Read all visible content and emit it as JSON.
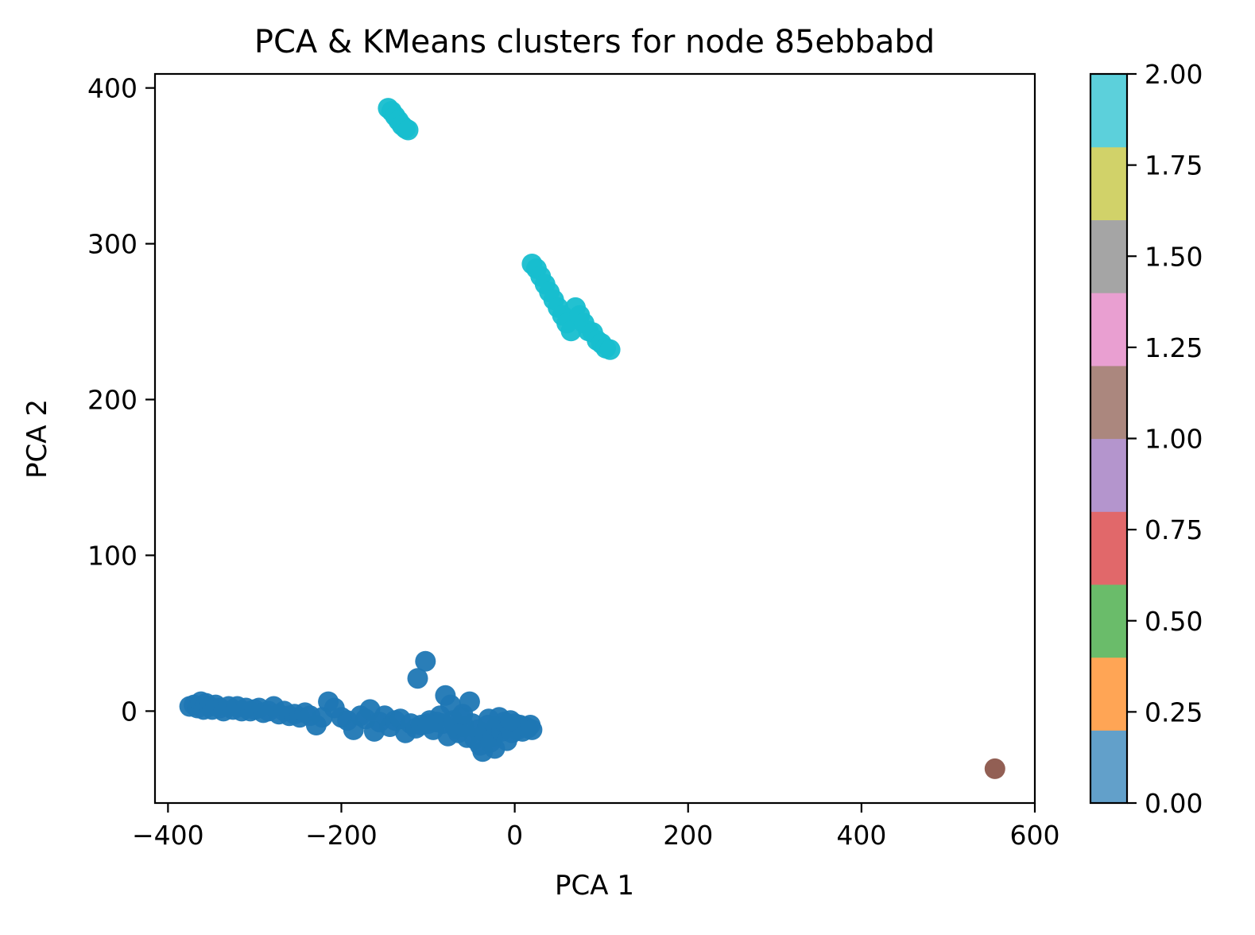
{
  "chart_data": {
    "type": "scatter",
    "title": "PCA & KMeans clusters for node 85ebbabd",
    "xlabel": "PCA 1",
    "ylabel": "PCA 2",
    "xlim": [
      -415,
      600
    ],
    "ylim": [
      -59,
      409
    ],
    "xticks": [
      -400,
      -200,
      0,
      200,
      400,
      600
    ],
    "xtick_labels": [
      "−400",
      "−200",
      "0",
      "200",
      "400",
      "600"
    ],
    "yticks": [
      0,
      100,
      200,
      300,
      400
    ],
    "ytick_labels": [
      "0",
      "100",
      "200",
      "300",
      "400"
    ],
    "grid": false,
    "colorbar": {
      "range": [
        0,
        2
      ],
      "ticks": [
        0,
        0.25,
        0.5,
        0.75,
        1.0,
        1.25,
        1.5,
        1.75,
        2.0
      ],
      "tick_labels": [
        "0.00",
        "0.25",
        "0.50",
        "0.75",
        "1.00",
        "1.25",
        "1.50",
        "1.75",
        "2.00"
      ],
      "colors": [
        "#62a0ca",
        "#ffa555",
        "#6abc6a",
        "#e1686a",
        "#b495cd",
        "#ab877e",
        "#e99fd1",
        "#a5a5a5",
        "#d1d269",
        "#5cd0db"
      ]
    },
    "series": [
      {
        "cluster": 0,
        "color": "#1f77b4",
        "points": [
          [
            -375,
            3
          ],
          [
            -370,
            4
          ],
          [
            -366,
            2
          ],
          [
            -362,
            6
          ],
          [
            -359,
            1
          ],
          [
            -356,
            5
          ],
          [
            -352,
            3
          ],
          [
            -349,
            1
          ],
          [
            -345,
            4
          ],
          [
            -340,
            2
          ],
          [
            -336,
            0
          ],
          [
            -330,
            3
          ],
          [
            -325,
            1
          ],
          [
            -320,
            3
          ],
          [
            -315,
            0
          ],
          [
            -310,
            2
          ],
          [
            -305,
            0
          ],
          [
            -300,
            1
          ],
          [
            -295,
            2
          ],
          [
            -290,
            -1
          ],
          [
            -284,
            0
          ],
          [
            -278,
            3
          ],
          [
            -272,
            -2
          ],
          [
            -266,
            0
          ],
          [
            -260,
            -3
          ],
          [
            -254,
            -2
          ],
          [
            -248,
            -4
          ],
          [
            -242,
            -1
          ],
          [
            -236,
            -3
          ],
          [
            -229,
            -9
          ],
          [
            -222,
            -4
          ],
          [
            -215,
            6
          ],
          [
            -208,
            2
          ],
          [
            -200,
            -4
          ],
          [
            -193,
            -6
          ],
          [
            -186,
            -12
          ],
          [
            -178,
            -3
          ],
          [
            -172,
            -5
          ],
          [
            -167,
            1
          ],
          [
            -162,
            -13
          ],
          [
            -156,
            -7
          ],
          [
            -150,
            -3
          ],
          [
            -144,
            -10
          ],
          [
            -138,
            -6
          ],
          [
            -132,
            -5
          ],
          [
            -126,
            -14
          ],
          [
            -120,
            -8
          ],
          [
            -114,
            -11
          ],
          [
            -112,
            21
          ],
          [
            -108,
            -9
          ],
          [
            -103,
            32
          ],
          [
            -98,
            -6
          ],
          [
            -94,
            -12
          ],
          [
            -90,
            -7
          ],
          [
            -86,
            -3
          ],
          [
            -83,
            -8
          ],
          [
            -80,
            10
          ],
          [
            -77,
            -16
          ],
          [
            -74,
            4
          ],
          [
            -71,
            -6
          ],
          [
            -68,
            -11
          ],
          [
            -65,
            -14
          ],
          [
            -62,
            -4
          ],
          [
            -58,
            -10
          ],
          [
            -55,
            -17
          ],
          [
            -52,
            6
          ],
          [
            -49,
            -8
          ],
          [
            -46,
            -18
          ],
          [
            -43,
            -12
          ],
          [
            -40,
            -22
          ],
          [
            -37,
            -26
          ],
          [
            -34,
            -14
          ],
          [
            -31,
            -9
          ],
          [
            -28,
            -20
          ],
          [
            -25,
            -16
          ],
          [
            -23,
            -24
          ],
          [
            -21,
            -10
          ],
          [
            -18,
            -4
          ],
          [
            -15,
            -13
          ],
          [
            -12,
            -7
          ],
          [
            -9,
            -19
          ],
          [
            -6,
            -10
          ],
          [
            -3,
            -14
          ],
          [
            0,
            -8
          ],
          [
            3,
            -12
          ],
          [
            6,
            -9
          ],
          [
            9,
            -13
          ],
          [
            12,
            -10
          ],
          [
            15,
            -11
          ],
          [
            18,
            -9
          ],
          [
            20,
            -12
          ],
          [
            -100,
            -8
          ],
          [
            -60,
            -2
          ],
          [
            -30,
            -5
          ],
          [
            -5,
            -6
          ]
        ]
      },
      {
        "cluster": 1,
        "color": "#8c564b",
        "points": [
          [
            554,
            -37
          ]
        ]
      },
      {
        "cluster": 2,
        "color": "#17becf",
        "points": [
          [
            -146,
            387
          ],
          [
            -142,
            385
          ],
          [
            -138,
            382
          ],
          [
            -134,
            379
          ],
          [
            -130,
            376
          ],
          [
            -126,
            374
          ],
          [
            -123,
            373
          ],
          [
            20,
            287
          ],
          [
            25,
            284
          ],
          [
            30,
            279
          ],
          [
            35,
            274
          ],
          [
            40,
            269
          ],
          [
            45,
            264
          ],
          [
            50,
            259
          ],
          [
            55,
            254
          ],
          [
            60,
            249
          ],
          [
            65,
            244
          ],
          [
            70,
            259
          ],
          [
            75,
            254
          ],
          [
            80,
            249
          ],
          [
            85,
            244
          ],
          [
            90,
            243
          ],
          [
            95,
            238
          ],
          [
            100,
            236
          ],
          [
            105,
            233
          ],
          [
            110,
            232
          ]
        ]
      }
    ]
  }
}
